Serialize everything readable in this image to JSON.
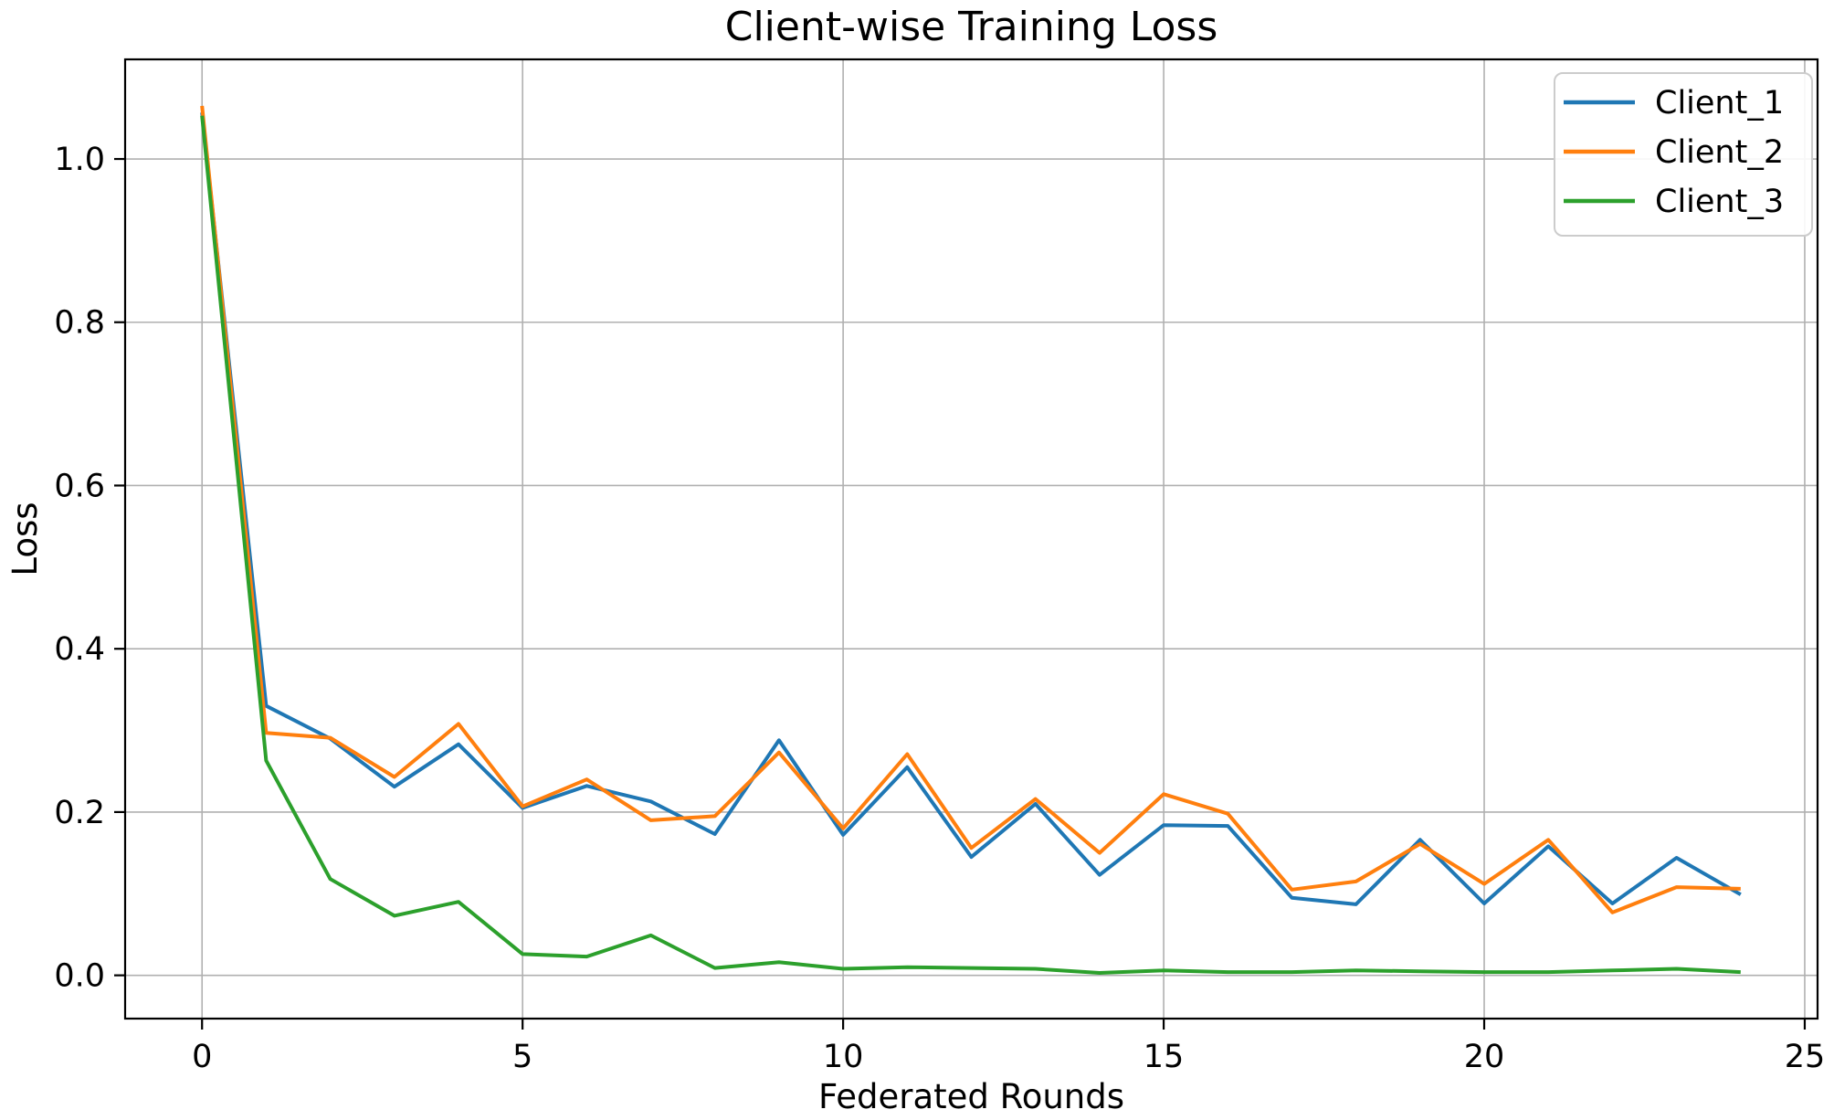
{
  "chart_data": {
    "type": "line",
    "title": "Client-wise Training Loss",
    "xlabel": "Federated Rounds",
    "ylabel": "Loss",
    "x": [
      0,
      1,
      2,
      3,
      4,
      5,
      6,
      7,
      8,
      9,
      10,
      11,
      12,
      13,
      14,
      15,
      16,
      17,
      18,
      19,
      20,
      21,
      22,
      23,
      24
    ],
    "series": [
      {
        "name": "Client_1",
        "color": "#1f77b4",
        "values": [
          1.057,
          0.33,
          0.29,
          0.231,
          0.283,
          0.205,
          0.232,
          0.213,
          0.173,
          0.288,
          0.172,
          0.255,
          0.145,
          0.21,
          0.123,
          0.184,
          0.183,
          0.095,
          0.087,
          0.166,
          0.088,
          0.158,
          0.088,
          0.144,
          0.099
        ]
      },
      {
        "name": "Client_2",
        "color": "#ff7f0e",
        "values": [
          1.065,
          0.297,
          0.291,
          0.243,
          0.308,
          0.207,
          0.24,
          0.19,
          0.195,
          0.273,
          0.18,
          0.271,
          0.156,
          0.216,
          0.15,
          0.222,
          0.198,
          0.105,
          0.115,
          0.161,
          0.112,
          0.166,
          0.077,
          0.108,
          0.106
        ]
      },
      {
        "name": "Client_3",
        "color": "#2ca02c",
        "values": [
          1.053,
          0.263,
          0.118,
          0.073,
          0.09,
          0.026,
          0.023,
          0.049,
          0.009,
          0.016,
          0.008,
          0.01,
          0.009,
          0.008,
          0.003,
          0.006,
          0.004,
          0.004,
          0.006,
          0.005,
          0.004,
          0.004,
          0.006,
          0.008,
          0.004
        ]
      }
    ],
    "xticks": [
      0,
      5,
      10,
      15,
      20,
      25
    ],
    "yticks": [
      0.0,
      0.2,
      0.4,
      0.6,
      0.8,
      1.0
    ],
    "xlim": [
      -1.2,
      25.2
    ],
    "ylim": [
      -0.053,
      1.122
    ],
    "grid": true,
    "legend_position": "upper right",
    "legend_entries": [
      "Client_1",
      "Client_2",
      "Client_3"
    ]
  },
  "colors": {
    "background": "#ffffff",
    "grid": "#b0b0b0",
    "spine": "#000000",
    "legend_border": "#cccccc",
    "client_1": "#1f77b4",
    "client_2": "#ff7f0e",
    "client_3": "#2ca02c"
  }
}
